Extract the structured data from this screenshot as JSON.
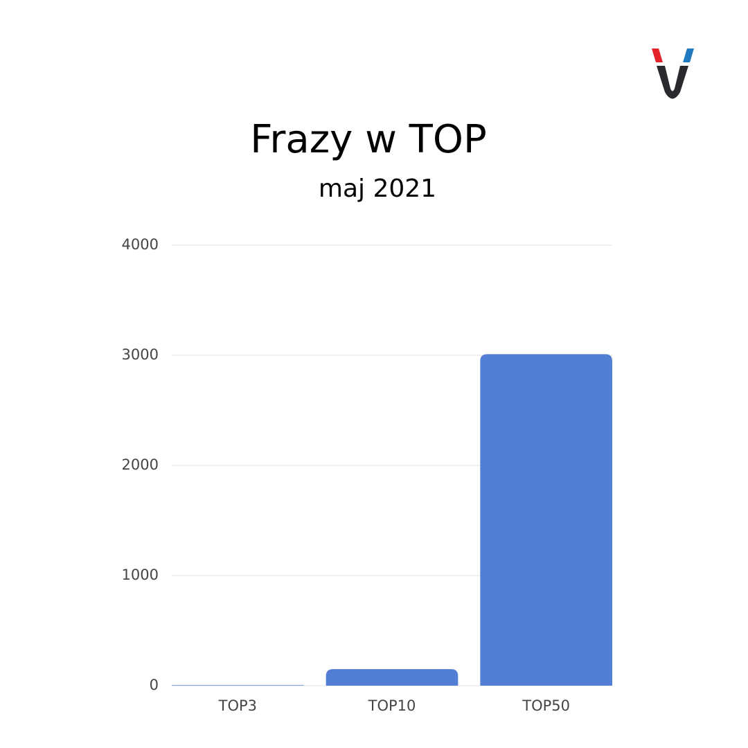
{
  "chart_data": {
    "type": "bar",
    "title": "Frazy w TOP",
    "subtitle": "maj 2021",
    "categories": [
      "TOP3",
      "TOP10",
      "TOP50"
    ],
    "values": [
      5,
      150,
      3010
    ],
    "color": "#527fd3",
    "ylim": [
      0,
      4000
    ],
    "yticks": [
      0,
      1000,
      2000,
      3000,
      4000
    ],
    "grid": true
  }
}
